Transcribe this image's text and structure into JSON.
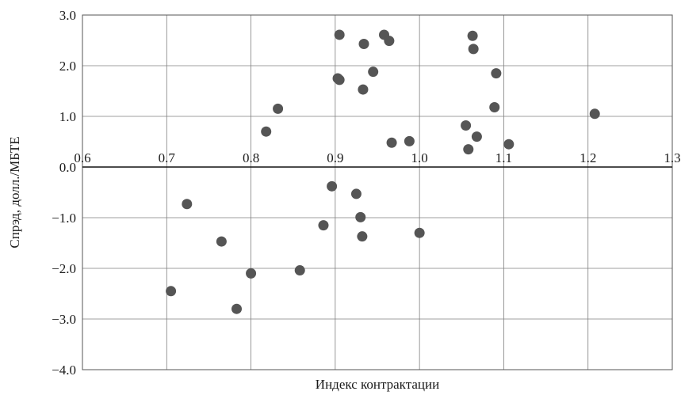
{
  "chart_data": {
    "type": "scatter",
    "xlabel": "Индекс контрактации",
    "ylabel": "Спрэд, долл./МБТЕ",
    "xlim": [
      0.6,
      1.3
    ],
    "ylim": [
      -4.0,
      3.0
    ],
    "x_ticks": [
      "0.6",
      "0.7",
      "0.8",
      "0.9",
      "1.0",
      "1.1",
      "1.2",
      "1.3"
    ],
    "y_ticks": [
      "3.0",
      "2.0",
      "1.0",
      "0.0",
      "−1.0",
      "−2.0",
      "−3.0",
      "−4.0"
    ],
    "grid": true,
    "legend": "none",
    "marker_color": "#555555",
    "points": [
      {
        "x": 0.705,
        "y": -2.45
      },
      {
        "x": 0.724,
        "y": -0.73
      },
      {
        "x": 0.765,
        "y": -1.47
      },
      {
        "x": 0.783,
        "y": -2.8
      },
      {
        "x": 0.8,
        "y": -2.1
      },
      {
        "x": 0.818,
        "y": 0.7
      },
      {
        "x": 0.832,
        "y": 1.15
      },
      {
        "x": 0.858,
        "y": -2.04
      },
      {
        "x": 0.886,
        "y": -1.15
      },
      {
        "x": 0.896,
        "y": -0.38
      },
      {
        "x": 0.903,
        "y": 1.75
      },
      {
        "x": 0.905,
        "y": 1.72
      },
      {
        "x": 0.905,
        "y": 2.61
      },
      {
        "x": 0.925,
        "y": -0.53
      },
      {
        "x": 0.93,
        "y": -0.99
      },
      {
        "x": 0.932,
        "y": -1.37
      },
      {
        "x": 0.933,
        "y": 1.53
      },
      {
        "x": 0.934,
        "y": 2.43
      },
      {
        "x": 0.945,
        "y": 1.88
      },
      {
        "x": 0.958,
        "y": 2.61
      },
      {
        "x": 0.964,
        "y": 2.49
      },
      {
        "x": 0.967,
        "y": 0.48
      },
      {
        "x": 0.988,
        "y": 0.51
      },
      {
        "x": 1.0,
        "y": -1.3
      },
      {
        "x": 1.055,
        "y": 0.82
      },
      {
        "x": 1.058,
        "y": 0.35
      },
      {
        "x": 1.063,
        "y": 2.59
      },
      {
        "x": 1.064,
        "y": 2.33
      },
      {
        "x": 1.068,
        "y": 0.6
      },
      {
        "x": 1.089,
        "y": 1.18
      },
      {
        "x": 1.091,
        "y": 1.85
      },
      {
        "x": 1.106,
        "y": 0.45
      },
      {
        "x": 1.208,
        "y": 1.05
      }
    ]
  }
}
